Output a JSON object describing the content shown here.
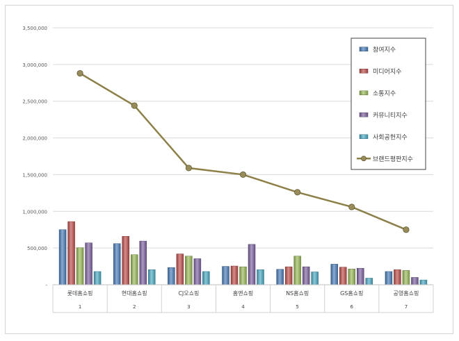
{
  "chart_data": {
    "type": "bar+line",
    "title": "",
    "xlabel": "",
    "ylabel": "",
    "ylim": [
      0,
      3500000
    ],
    "yticks": [
      0,
      500000,
      1000000,
      1500000,
      2000000,
      2500000,
      3000000,
      3500000
    ],
    "ytick_labels": [
      "-",
      "500,000",
      "1,000,000",
      "1,500,000",
      "2,000,000",
      "2,500,000",
      "3,000,000",
      "3,500,000"
    ],
    "grid": true,
    "legend_position": "top-right",
    "categories": [
      "롯데홈쇼핑",
      "현대홈쇼핑",
      "CJ오쇼핑",
      "홈앤쇼핑",
      "NS홈쇼핑",
      "GS홈쇼핑",
      "공영홈쇼핑"
    ],
    "ranks": [
      "1",
      "2",
      "3",
      "4",
      "5",
      "6",
      "7"
    ],
    "series": [
      {
        "name": "참여지수",
        "type": "bar",
        "color": "#4a7ebb",
        "values": [
          750000,
          560000,
          235000,
          250000,
          210000,
          280000,
          180000
        ]
      },
      {
        "name": "미디어지수",
        "type": "bar",
        "color": "#c0504d",
        "values": [
          860000,
          660000,
          420000,
          255000,
          245000,
          240000,
          205000
        ]
      },
      {
        "name": "소통지수",
        "type": "bar",
        "color": "#9bbb59",
        "values": [
          505000,
          410000,
          390000,
          245000,
          390000,
          215000,
          195000
        ]
      },
      {
        "name": "커뮤니티지수",
        "type": "bar",
        "color": "#8064a2",
        "values": [
          570000,
          595000,
          355000,
          550000,
          245000,
          225000,
          100000
        ]
      },
      {
        "name": "사회공헌지수",
        "type": "bar",
        "color": "#4bacc6",
        "values": [
          180000,
          205000,
          180000,
          205000,
          175000,
          90000,
          65000
        ]
      },
      {
        "name": "브랜드평판지수",
        "type": "line",
        "color": "#8c7f48",
        "values": [
          2880000,
          2440000,
          1590000,
          1500000,
          1260000,
          1060000,
          750000
        ]
      }
    ]
  }
}
